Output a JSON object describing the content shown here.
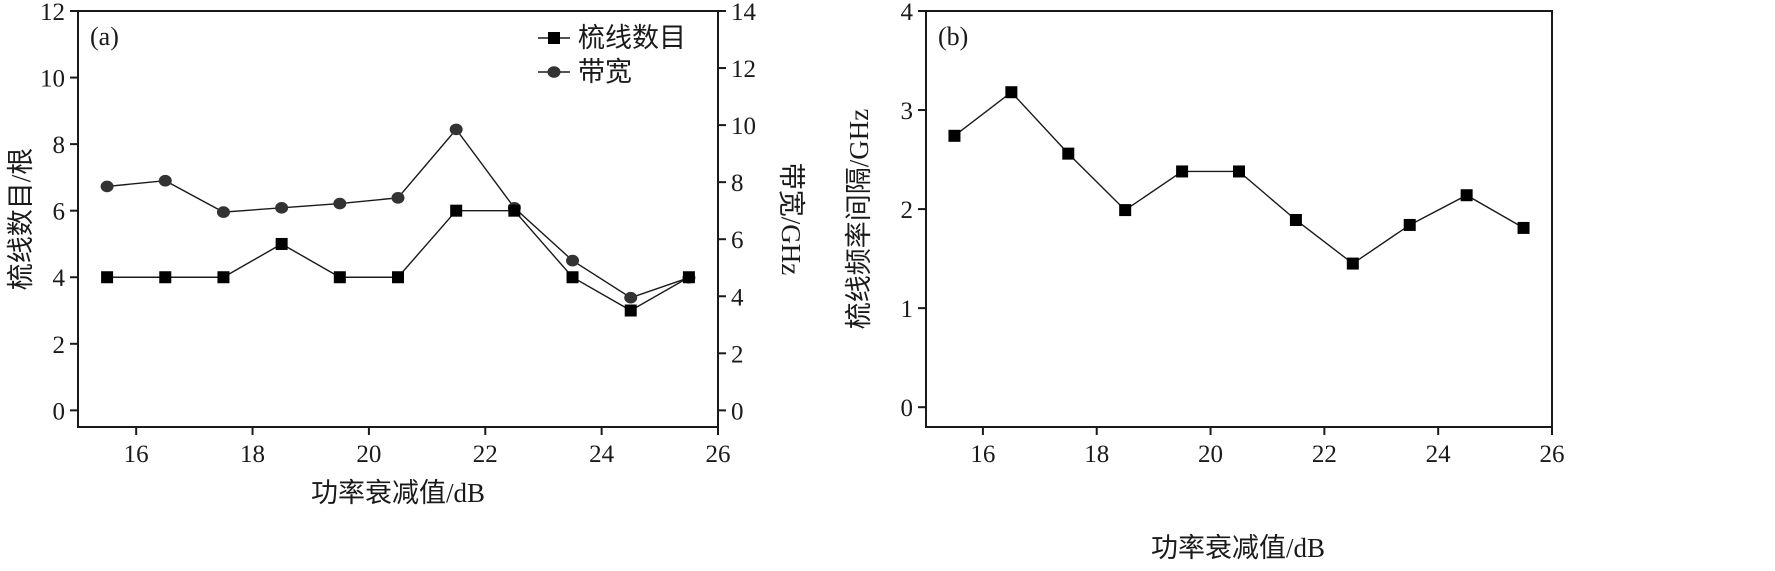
{
  "chart_data": [
    {
      "type": "line",
      "panel_label": "(a)",
      "xlabel": "功率衰减值/dB",
      "ylabel": "梳线数目/根",
      "y2label": "带宽/GHz",
      "xlim": [
        15,
        26
      ],
      "ylim": [
        -0.5,
        12
      ],
      "y2lim": [
        -0.5833,
        14
      ],
      "xticks": [
        16,
        18,
        20,
        22,
        24,
        26
      ],
      "yticks": [
        0,
        2,
        4,
        6,
        8,
        10,
        12
      ],
      "y2ticks": [
        0,
        2,
        4,
        6,
        8,
        10,
        12,
        14
      ],
      "grid": false,
      "legend_position": "top-right",
      "series": [
        {
          "name": "梳线数目",
          "axis": "left",
          "marker": "square",
          "x": [
            15.5,
            16.5,
            17.5,
            18.5,
            19.5,
            20.5,
            21.5,
            22.5,
            23.5,
            24.5,
            25.5
          ],
          "y": [
            4,
            4,
            4,
            5,
            4,
            4,
            6,
            6,
            4,
            3,
            4
          ]
        },
        {
          "name": "带宽",
          "axis": "right",
          "marker": "circle",
          "x": [
            15.5,
            16.5,
            17.5,
            18.5,
            19.5,
            20.5,
            21.5,
            22.5,
            23.5,
            24.5,
            25.5
          ],
          "y": [
            7.85,
            8.05,
            6.95,
            7.1,
            7.25,
            7.45,
            9.85,
            7.1,
            5.25,
            3.95,
            4.65
          ]
        }
      ]
    },
    {
      "type": "line",
      "panel_label": "(b)",
      "xlabel": "功率衰减值/dB",
      "ylabel": "梳线频率间隔/GHz",
      "xlim": [
        15,
        26
      ],
      "ylim": [
        -0.2,
        4
      ],
      "xticks": [
        16,
        18,
        20,
        22,
        24,
        26
      ],
      "yticks": [
        0,
        1,
        2,
        3,
        4
      ],
      "grid": false,
      "series": [
        {
          "marker": "square",
          "x": [
            15.5,
            16.5,
            17.5,
            18.5,
            19.5,
            20.5,
            21.5,
            22.5,
            23.5,
            24.5,
            25.5
          ],
          "y": [
            2.74,
            3.18,
            2.56,
            1.99,
            2.38,
            2.38,
            1.89,
            1.45,
            1.84,
            2.14,
            1.81
          ]
        }
      ]
    }
  ]
}
